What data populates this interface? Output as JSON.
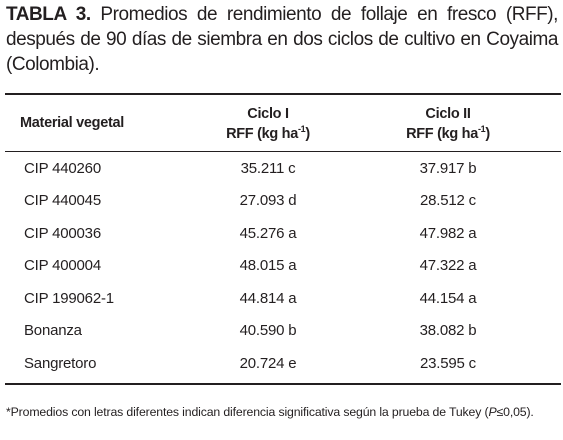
{
  "caption": {
    "label": "TABLA 3.",
    "text": "Promedios de rendimiento de follaje en fresco (RFF), después de 90 días de siembra en dos ciclos de cultivo en Coyaima (Colombia)."
  },
  "table": {
    "headers": {
      "material": "Material vegetal",
      "ciclo1_title": "Ciclo I",
      "ciclo2_title": "Ciclo II",
      "unit_prefix": "RFF (kg ha",
      "unit_exp": "-1",
      "unit_suffix": ")"
    },
    "rows": [
      {
        "material": "CIP 440260",
        "ciclo1": "35.211 c",
        "ciclo2": "37.917 b"
      },
      {
        "material": "CIP 440045",
        "ciclo1": "27.093 d",
        "ciclo2": "28.512 c"
      },
      {
        "material": "CIP 400036",
        "ciclo1": "45.276 a",
        "ciclo2": "47.982 a"
      },
      {
        "material": "CIP 400004",
        "ciclo1": "48.015 a",
        "ciclo2": "47.322 a"
      },
      {
        "material": "CIP 199062-1",
        "ciclo1": "44.814 a",
        "ciclo2": "44.154 a"
      },
      {
        "material": "Bonanza",
        "ciclo1": "40.590 b",
        "ciclo2": "38.082 b"
      },
      {
        "material": "Sangretoro",
        "ciclo1": "20.724 e",
        "ciclo2": "23.595 c"
      }
    ]
  },
  "footnote": {
    "text": "*Promedios con letras diferentes indican diferencia significativa según la prueba de Tukey",
    "open": "(",
    "p": "P",
    "cond": "≤0,05)."
  }
}
